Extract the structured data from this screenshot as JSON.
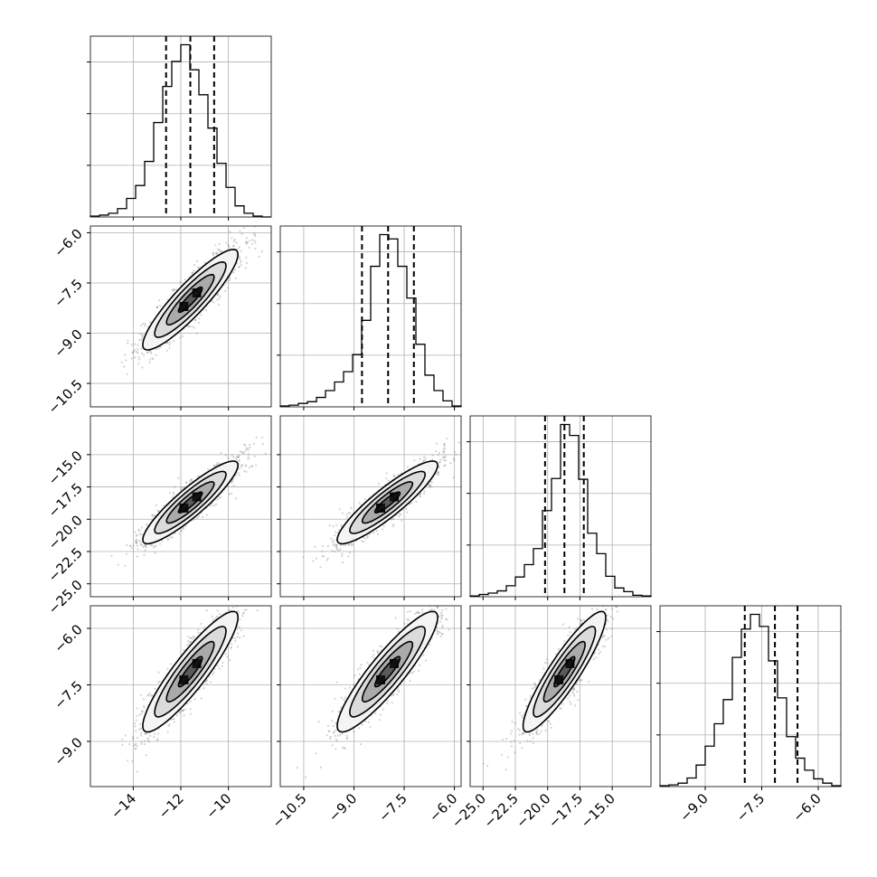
{
  "chart_data": {
    "type": "corner",
    "grid": true,
    "n_params": 4,
    "quantiles": [
      0.16,
      0.5,
      0.84
    ],
    "params": [
      {
        "range": [
          -15.8,
          -8.2
        ],
        "ticks": [
          -14,
          -12,
          -10
        ],
        "tick_labels": [
          "−14",
          "−12",
          "−10"
        ],
        "mean": -11.6,
        "sd": 1.0
      },
      {
        "range": [
          -11.2,
          -5.8
        ],
        "ticks": [
          -10.5,
          -9.0,
          -7.5,
          -6.0
        ],
        "tick_labels": [
          "−10.5",
          "−9.0",
          "−7.5",
          "−6.0"
        ],
        "mean": -8.0,
        "sd": 0.75
      },
      {
        "range": [
          -26.0,
          -12.0
        ],
        "ticks": [
          -25.0,
          -22.5,
          -20.0,
          -17.5,
          -15.0
        ],
        "tick_labels": [
          "−25.0",
          "−22.5",
          "−20.0",
          "−17.5",
          "−15.0"
        ],
        "mean": -18.7,
        "sd": 1.6
      },
      {
        "range": [
          -10.2,
          -5.4
        ],
        "ticks": [
          -9.0,
          -7.5,
          -6.0
        ],
        "tick_labels": [
          "−9.0",
          "−7.5",
          "−6.0"
        ],
        "mean": -7.15,
        "sd": 0.8
      }
    ],
    "histograms": [
      {
        "param": 0,
        "bin_edges": [
          -15.8,
          -15.42,
          -15.04,
          -14.66,
          -14.28,
          -13.9,
          -13.52,
          -13.14,
          -12.76,
          -12.38,
          -12.0,
          -11.62,
          -11.24,
          -10.86,
          -10.48,
          -10.1,
          -9.72,
          -9.34,
          -8.96,
          -8.58,
          -8.2
        ],
        "counts": [
          1,
          2,
          4,
          9,
          20,
          34,
          60,
          102,
          141,
          168,
          186,
          159,
          132,
          96,
          58,
          32,
          12,
          4,
          1,
          0
        ],
        "quantile_values": [
          -12.62,
          -11.6,
          -10.6
        ]
      },
      {
        "param": 1,
        "bin_edges": [
          -11.2,
          -10.93,
          -10.66,
          -10.39,
          -10.12,
          -9.85,
          -9.58,
          -9.31,
          -9.04,
          -8.77,
          -8.5,
          -8.23,
          -7.96,
          -7.69,
          -7.42,
          -7.15,
          -6.88,
          -6.61,
          -6.34,
          -6.07,
          -5.8
        ],
        "counts": [
          1,
          2,
          4,
          6,
          11,
          19,
          29,
          41,
          61,
          101,
          164,
          201,
          196,
          164,
          127,
          73,
          37,
          19,
          7,
          1
        ],
        "quantile_values": [
          -8.76,
          -7.98,
          -7.21
        ]
      },
      {
        "param": 2,
        "bin_edges": [
          -26.0,
          -25.3,
          -24.6,
          -23.9,
          -23.2,
          -22.5,
          -21.8,
          -21.1,
          -20.4,
          -19.7,
          -19.0,
          -18.3,
          -17.6,
          -16.9,
          -16.2,
          -15.5,
          -14.8,
          -14.1,
          -13.4,
          -12.7,
          -12.0
        ],
        "counts": [
          1,
          3,
          5,
          8,
          15,
          27,
          44,
          66,
          118,
          162,
          236,
          221,
          161,
          87,
          59,
          28,
          12,
          7,
          2,
          1
        ],
        "quantile_values": [
          -20.2,
          -18.7,
          -17.2
        ]
      },
      {
        "param": 3,
        "bin_edges": [
          -10.2,
          -9.96,
          -9.72,
          -9.48,
          -9.24,
          -9.0,
          -8.76,
          -8.52,
          -8.28,
          -8.04,
          -7.8,
          -7.56,
          -7.32,
          -7.08,
          -6.84,
          -6.6,
          -6.36,
          -6.12,
          -5.88,
          -5.64,
          -5.4
        ],
        "counts": [
          1,
          2,
          4,
          10,
          25,
          47,
          73,
          101,
          150,
          183,
          200,
          186,
          146,
          103,
          58,
          33,
          19,
          9,
          4,
          1
        ],
        "quantile_values": [
          -7.95,
          -7.15,
          -6.55
        ]
      }
    ],
    "pairs": [
      {
        "x_param": 0,
        "y_param": 1,
        "correlation": 0.9,
        "n_samples": 1500
      },
      {
        "x_param": 0,
        "y_param": 2,
        "correlation": 0.9,
        "n_samples": 1500
      },
      {
        "x_param": 1,
        "y_param": 2,
        "correlation": 0.9,
        "n_samples": 1500
      },
      {
        "x_param": 0,
        "y_param": 3,
        "correlation": 0.9,
        "n_samples": 1500
      },
      {
        "x_param": 1,
        "y_param": 3,
        "correlation": 0.9,
        "n_samples": 1500
      },
      {
        "x_param": 2,
        "y_param": 3,
        "correlation": 0.9,
        "n_samples": 1500
      }
    ],
    "contour_levels_sigma": [
      0.5,
      1.0,
      1.5,
      2.0
    ],
    "colors": {
      "line": "#000000",
      "grid": "#b0b0b0",
      "points": "#808080",
      "frame": "#000000"
    }
  }
}
